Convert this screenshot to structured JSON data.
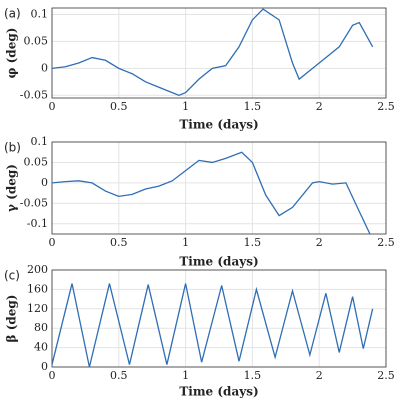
{
  "chart_data": [
    {
      "type": "line",
      "panel_label": "(a)",
      "xlabel": "Time (days)",
      "ylabel": "φ (deg)",
      "color": "#2f6eb5",
      "grid": true,
      "x": [
        0,
        0.1,
        0.2,
        0.3,
        0.4,
        0.5,
        0.6,
        0.7,
        0.8,
        0.9,
        0.95,
        1.0,
        1.1,
        1.2,
        1.3,
        1.4,
        1.5,
        1.58,
        1.7,
        1.8,
        1.85,
        1.95,
        2.05,
        2.15,
        2.25,
        2.3,
        2.4
      ],
      "values": [
        0,
        0.003,
        0.01,
        0.02,
        0.015,
        0,
        -0.01,
        -0.025,
        -0.035,
        -0.045,
        -0.05,
        -0.045,
        -0.02,
        0,
        0.005,
        0.04,
        0.09,
        0.11,
        0.09,
        0.01,
        -0.02,
        0,
        0.02,
        0.04,
        0.08,
        0.085,
        0.04
      ],
      "xlim": [
        0,
        2.5
      ],
      "xticks": [
        0,
        0.5,
        1,
        1.5,
        2,
        2.5
      ],
      "ylim": [
        -0.055,
        0.112
      ],
      "yticks": [
        -0.05,
        0,
        0.05,
        0.1
      ]
    },
    {
      "type": "line",
      "panel_label": "(b)",
      "xlabel": "Time (days)",
      "ylabel": "γ (deg)",
      "color": "#2f6eb5",
      "grid": true,
      "x": [
        0,
        0.1,
        0.2,
        0.3,
        0.4,
        0.5,
        0.6,
        0.7,
        0.8,
        0.9,
        1.0,
        1.1,
        1.2,
        1.3,
        1.42,
        1.5,
        1.6,
        1.7,
        1.8,
        1.95,
        2.0,
        2.1,
        2.2,
        2.3,
        2.38
      ],
      "values": [
        0,
        0.003,
        0.005,
        0,
        -0.02,
        -0.033,
        -0.028,
        -0.015,
        -0.008,
        0.005,
        0.03,
        0.055,
        0.05,
        0.06,
        0.075,
        0.05,
        -0.03,
        -0.08,
        -0.06,
        0,
        0.003,
        -0.003,
        0,
        -0.07,
        -0.125
      ],
      "xlim": [
        0,
        2.5
      ],
      "xticks": [
        0,
        0.5,
        1,
        1.5,
        2,
        2.5
      ],
      "ylim": [
        -0.125,
        0.1
      ],
      "yticks": [
        -0.1,
        -0.05,
        0,
        0.05,
        0.1
      ]
    },
    {
      "type": "line",
      "panel_label": "(c)",
      "xlabel": "Time (days)",
      "ylabel": "β (deg)",
      "color": "#2f6eb5",
      "grid": true,
      "x": [
        0,
        0.15,
        0.28,
        0.43,
        0.58,
        0.72,
        0.86,
        1.0,
        1.12,
        1.27,
        1.4,
        1.53,
        1.67,
        1.8,
        1.93,
        2.05,
        2.15,
        2.25,
        2.33,
        2.4
      ],
      "values": [
        5,
        172,
        0,
        172,
        5,
        170,
        5,
        172,
        10,
        168,
        12,
        160,
        20,
        157,
        25,
        152,
        30,
        145,
        38,
        120
      ],
      "xlim": [
        0,
        2.5
      ],
      "xticks": [
        0,
        0.5,
        1,
        1.5,
        2,
        2.5
      ],
      "ylim": [
        0,
        200
      ],
      "yticks": [
        0,
        40,
        80,
        120,
        160,
        200
      ]
    }
  ]
}
